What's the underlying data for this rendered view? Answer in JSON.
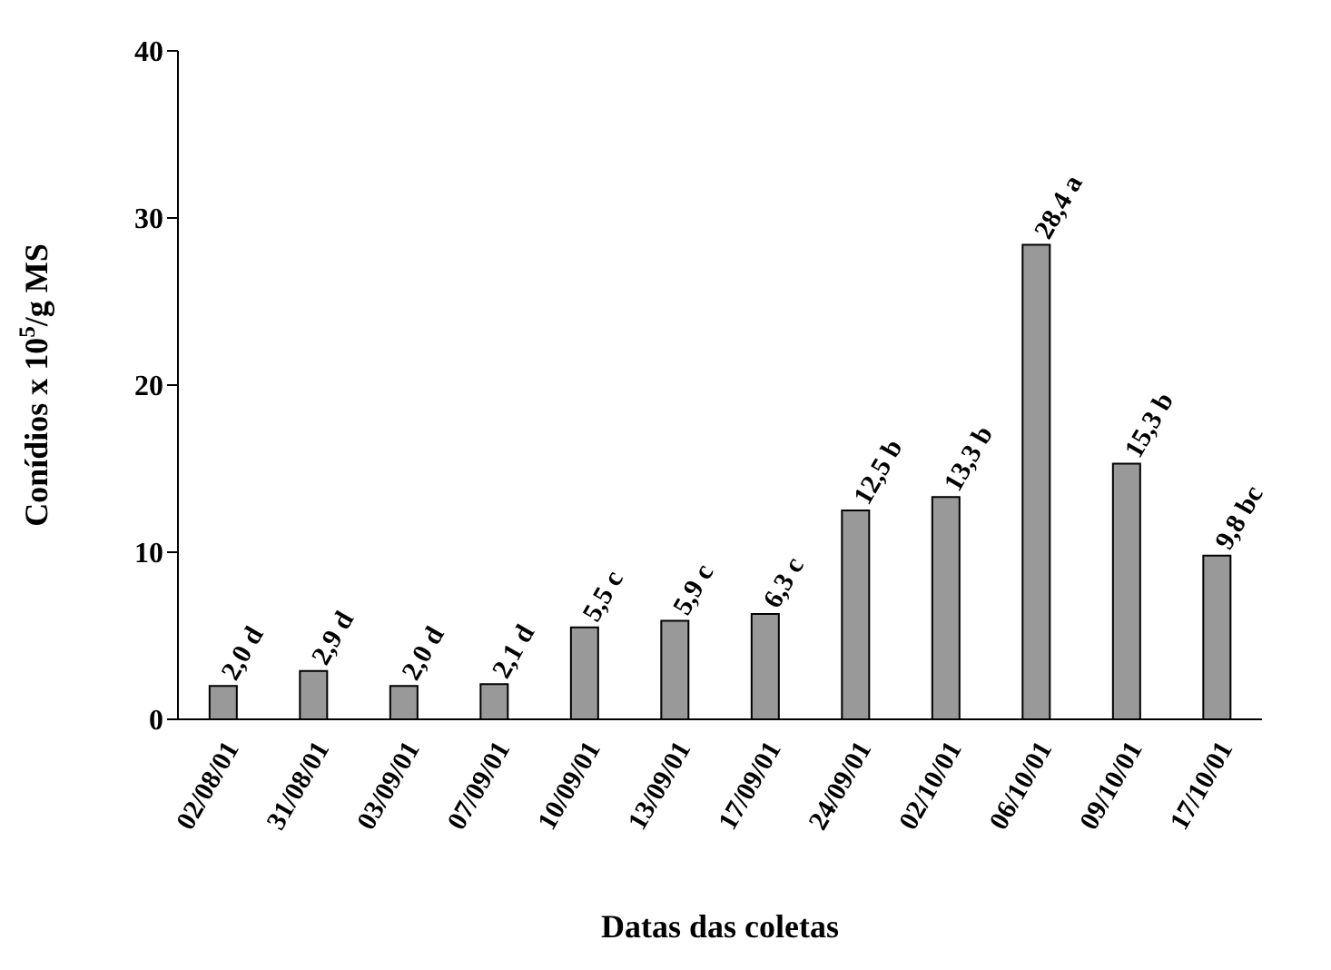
{
  "chart_data": {
    "type": "bar",
    "xlabel": "Datas das coletas",
    "ylabel": "Conídios x 10$^{5}$/g MS",
    "categories": [
      "02/08/01",
      "31/08/01",
      "03/09/01",
      "07/09/01",
      "10/09/01",
      "13/09/01",
      "17/09/01",
      "24/09/01",
      "02/10/01",
      "06/10/01",
      "09/10/01",
      "17/10/01"
    ],
    "values": [
      2.0,
      2.9,
      2.0,
      2.1,
      5.5,
      5.9,
      6.3,
      12.5,
      13.3,
      28.4,
      15.3,
      9.8
    ],
    "value_labels": [
      "2,0 d",
      "2,9 d",
      "2,0 d",
      "2,1 d",
      "5,5 c",
      "5,9 c",
      "6,3 c",
      "12,5 b",
      "13,3 b",
      "28,4 a",
      "15,3 b",
      "9,8 bc"
    ],
    "color": "#999999",
    "ylim": [
      0,
      40
    ],
    "yticks": [
      0,
      10,
      20,
      30,
      40
    ],
    "grid": false,
    "legend": false
  }
}
